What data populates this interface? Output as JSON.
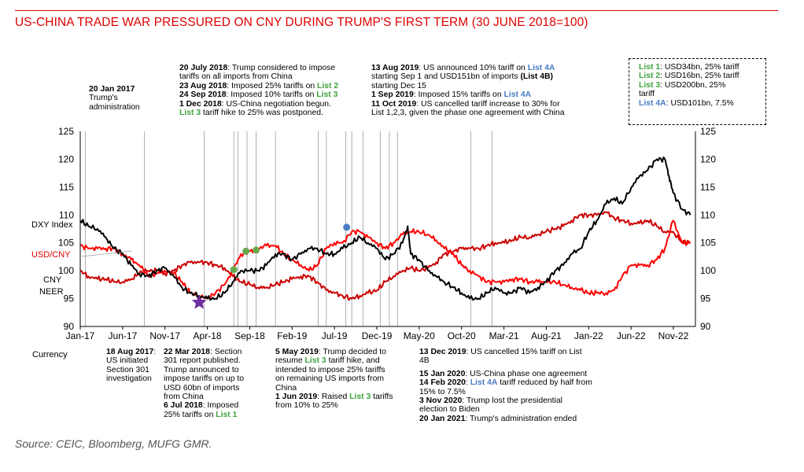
{
  "title": "US-CHINA TRADE WAR PRESSURED ON CNY DURING TRUMP'S FIRST TERM (30 JUNE 2018=100)",
  "source": "Source: CEIC, Bloomberg, MUFG GMR.",
  "colors": {
    "title": "#e00000",
    "dxy": "#000000",
    "usdcny": "#ff0000",
    "cneer": "#cc0000",
    "list_green": "#6aa84f",
    "list_blue": "#4a7cc4",
    "star": "#7030a0"
  },
  "annotations_top": {
    "jan2017": {
      "date": "20 Jan 2017",
      "text": "Trump's administration"
    },
    "jul2018": {
      "l1_date": "20 July 2018",
      "l1_text": "Trump considered to impose",
      "l1_cont": "tariffs on all imports from China",
      "l2_date": "23 Aug 2018",
      "l2_text": "Imposed 25% tariffs on",
      "l2_list": "List 2",
      "l3_date": "24 Sep 2018",
      "l3_text": "Imposed 10% tariffs on",
      "l3_list": "List 3",
      "l4_date": "1 Dec 2018",
      "l4_text": "US-China negotiation begun.",
      "l5_list": "List 3",
      "l5_text": "tariff hike to 25% was postponed."
    },
    "aug2019": {
      "l1_date": "13 Aug 2019",
      "l1_text": "US announced 10% tariff on",
      "l1_list": "List 4A",
      "l2_text": "starting Sep 1 and USD151bn of imports",
      "l2_bold": "(List 4B)",
      "l3_text": "starting Dec 15",
      "l4_date": "1 Sep 2019",
      "l4_text": "Imposed 15% tariffs on",
      "l4_list": "List 4A",
      "l5_date": "11 Oct 2019",
      "l5_text": "US cancelled tariff increase to 30% for",
      "l6_text": "List 1,2,3, given the phase one agreement with China"
    }
  },
  "legend_box": {
    "l1_name": "List 1",
    "l1_text": "USD34bn, 25% tariff",
    "l2_name": "List 2",
    "l2_text": "USD16bn, 25% tariff",
    "l3_name": "List 3",
    "l3_text": "USD200bn, 25%",
    "l3_cont": "tariff",
    "l4_name": "List 4A",
    "l4_text": "USD101bn, 7.5%"
  },
  "annotations_bottom": {
    "currency": "Currency",
    "aug2017": {
      "date": "18 Aug 2017",
      "l1": "US initiated",
      "l2": "Section 301",
      "l3": "investigation"
    },
    "mar2018": {
      "date": "22 Mar 2018",
      "l1": "Section",
      "l2": "301 report published.",
      "l3": "Trump announced to",
      "l4": "impose tariffs on up to",
      "l5": "USD 60bn of imports",
      "l6": "from China",
      "l7_date": "6 Jul 2018",
      "l7": "Imposed",
      "l8": "25% tariffs on",
      "l8_list": "List 1"
    },
    "may2019": {
      "date": "5 May 2019",
      "l1": "Trump decided to",
      "l2a": "resume",
      "l2_list": "List 3",
      "l2b": "tariff hike, and",
      "l3": "intended to impose 25% tariffs",
      "l4": "on remaining US imports from",
      "l5": "China",
      "l6_date": "1 Jun 2019",
      "l6": "Raised",
      "l6_list": "List 3",
      "l6b": "tariffs",
      "l7": "from 10% to 25%"
    },
    "dec2019": {
      "d1": "13 Dec 2019",
      "t1": "US cancelled 15% tariff on List",
      "t1b": "4B",
      "d2": "15 Jan 2020",
      "t2": "US-China phase one agreement",
      "d3": "14 Feb 2020",
      "t3_list": "List 4A",
      "t3": "tariff reduced by half from",
      "t3b": "15% to 7.5%",
      "d4": "3 Nov 2020",
      "t4": "Trump lost the presidential",
      "t4b": "election to Biden",
      "d5": "20 Jan 2021",
      "t5": "Trump's administration ended"
    }
  },
  "series_labels": {
    "dxy": "DXY Index",
    "usdcny": "USD/CNY",
    "cneer_1": "CNY",
    "cneer_2": "NEER"
  },
  "chart_data": {
    "type": "line",
    "x_ticks": [
      "Jan-17",
      "Jun-17",
      "Nov-17",
      "Apr-18",
      "Sep-18",
      "Feb-19",
      "Jul-19",
      "Dec-19",
      "May-20",
      "Oct-20",
      "Mar-21",
      "Aug-21",
      "Jan-22",
      "Jun-22",
      "Nov-22"
    ],
    "x_tick_positions": [
      2017.0,
      2017.417,
      2017.833,
      2018.25,
      2018.667,
      2019.083,
      2019.5,
      2019.917,
      2020.333,
      2020.75,
      2021.167,
      2021.583,
      2022.0,
      2022.417,
      2022.833
    ],
    "xlim": [
      2017.0,
      2023.05
    ],
    "ylim": [
      90,
      125
    ],
    "y_ticks": [
      90,
      95,
      100,
      105,
      110,
      115,
      120,
      125
    ],
    "grid": false,
    "series": [
      {
        "name": "DXY Index",
        "x": [
          2017.0,
          2017.08,
          2017.17,
          2017.25,
          2017.33,
          2017.42,
          2017.5,
          2017.58,
          2017.67,
          2017.75,
          2017.83,
          2017.92,
          2018.0,
          2018.08,
          2018.17,
          2018.25,
          2018.33,
          2018.42,
          2018.5,
          2018.58,
          2018.67,
          2018.75,
          2018.83,
          2018.92,
          2019.0,
          2019.08,
          2019.17,
          2019.25,
          2019.33,
          2019.42,
          2019.5,
          2019.58,
          2019.67,
          2019.75,
          2019.83,
          2019.92,
          2020.0,
          2020.08,
          2020.17,
          2020.22,
          2020.25,
          2020.33,
          2020.42,
          2020.5,
          2020.58,
          2020.67,
          2020.75,
          2020.83,
          2020.92,
          2021.0,
          2021.08,
          2021.17,
          2021.25,
          2021.33,
          2021.42,
          2021.5,
          2021.58,
          2021.67,
          2021.75,
          2021.83,
          2021.92,
          2022.0,
          2022.08,
          2022.17,
          2022.25,
          2022.33,
          2022.42,
          2022.5,
          2022.58,
          2022.67,
          2022.75,
          2022.79,
          2022.83,
          2022.92,
          2023.0
        ],
        "values": [
          109,
          108,
          107.5,
          106,
          104,
          103,
          101,
          99.5,
          99,
          100,
          100.5,
          99,
          97,
          96,
          95.5,
          95,
          95,
          96,
          98,
          100,
          100,
          100,
          101,
          103,
          103,
          102,
          103,
          104,
          104,
          103,
          103,
          104,
          105,
          106,
          105,
          104,
          102,
          103,
          105,
          108,
          103,
          102,
          100,
          99,
          98,
          97,
          96,
          95,
          95,
          96,
          97,
          96,
          96,
          97,
          96,
          97,
          98,
          100,
          101,
          103,
          104,
          107,
          109,
          112,
          113,
          112,
          115,
          117,
          118,
          120,
          120,
          117,
          114,
          111,
          110
        ]
      },
      {
        "name": "USD/CNY",
        "x": [
          2017.0,
          2017.08,
          2017.17,
          2017.25,
          2017.33,
          2017.42,
          2017.5,
          2017.58,
          2017.67,
          2017.75,
          2017.83,
          2017.92,
          2018.0,
          2018.08,
          2018.17,
          2018.25,
          2018.33,
          2018.42,
          2018.5,
          2018.58,
          2018.67,
          2018.75,
          2018.83,
          2018.92,
          2019.0,
          2019.08,
          2019.17,
          2019.25,
          2019.33,
          2019.42,
          2019.5,
          2019.58,
          2019.67,
          2019.75,
          2019.83,
          2019.92,
          2020.0,
          2020.08,
          2020.17,
          2020.25,
          2020.33,
          2020.42,
          2020.5,
          2020.58,
          2020.67,
          2020.75,
          2020.83,
          2020.92,
          2021.0,
          2021.08,
          2021.17,
          2021.25,
          2021.33,
          2021.42,
          2021.5,
          2021.58,
          2021.67,
          2021.75,
          2021.83,
          2021.92,
          2022.0,
          2022.08,
          2022.17,
          2022.25,
          2022.33,
          2022.42,
          2022.5,
          2022.58,
          2022.67,
          2022.75,
          2022.83,
          2022.92,
          2023.0
        ],
        "values": [
          104.5,
          104,
          104,
          104,
          104,
          103,
          102,
          101,
          99,
          99.5,
          100,
          99.5,
          98,
          96,
          95.5,
          95,
          96,
          97.5,
          100,
          103,
          103.5,
          104,
          104.5,
          104.5,
          103,
          102,
          101,
          100,
          101,
          104,
          105,
          105,
          107,
          107,
          106,
          105,
          104,
          105,
          106.5,
          107,
          107,
          106.5,
          105.5,
          104,
          103,
          101,
          100,
          99,
          98,
          98,
          98,
          98.5,
          98.5,
          98,
          98,
          98,
          98,
          97.5,
          97,
          96.5,
          96,
          96,
          96,
          96.5,
          99,
          101,
          101,
          101,
          102,
          104,
          109,
          105,
          105
        ]
      },
      {
        "name": "CNY NEER",
        "x": [
          2017.0,
          2017.08,
          2017.17,
          2017.25,
          2017.33,
          2017.42,
          2017.5,
          2017.58,
          2017.67,
          2017.75,
          2017.83,
          2017.92,
          2018.0,
          2018.08,
          2018.17,
          2018.25,
          2018.33,
          2018.42,
          2018.5,
          2018.58,
          2018.67,
          2018.75,
          2018.83,
          2018.92,
          2019.0,
          2019.08,
          2019.17,
          2019.25,
          2019.33,
          2019.42,
          2019.5,
          2019.58,
          2019.67,
          2019.75,
          2019.83,
          2019.92,
          2020.0,
          2020.08,
          2020.17,
          2020.25,
          2020.33,
          2020.42,
          2020.5,
          2020.58,
          2020.67,
          2020.75,
          2020.83,
          2020.92,
          2021.0,
          2021.08,
          2021.17,
          2021.25,
          2021.33,
          2021.42,
          2021.5,
          2021.58,
          2021.67,
          2021.75,
          2021.83,
          2021.92,
          2022.0,
          2022.08,
          2022.17,
          2022.25,
          2022.33,
          2022.42,
          2022.5,
          2022.58,
          2022.67,
          2022.75,
          2022.83,
          2022.92,
          2023.0
        ],
        "values": [
          100,
          99,
          98.5,
          98.5,
          98,
          98,
          98.5,
          99.5,
          100,
          100,
          99.5,
          100,
          101,
          101.5,
          101.5,
          101.5,
          101,
          100.5,
          99,
          98,
          97.5,
          97,
          97,
          97.5,
          98,
          98.5,
          99,
          99,
          98,
          96.5,
          96,
          95.5,
          95,
          95.5,
          96,
          96.5,
          98,
          99,
          100,
          100.5,
          100,
          100.5,
          101.5,
          103,
          103.5,
          104,
          104,
          104,
          104.5,
          105,
          105,
          105.5,
          106,
          106,
          106.5,
          107,
          107.5,
          108,
          109,
          110,
          110,
          110,
          110.5,
          109.5,
          109,
          108.5,
          108.5,
          109,
          108,
          107,
          107,
          105,
          105
        ]
      }
    ],
    "markers": [
      {
        "type": "star",
        "x": 2018.17,
        "y": 94.3
      },
      {
        "type": "dot",
        "x": 2018.51,
        "y": 100.2,
        "label": "List 1"
      },
      {
        "type": "dot",
        "x": 2018.63,
        "y": 103.5,
        "label": "List 2"
      },
      {
        "type": "dot",
        "x": 2018.73,
        "y": 103.7,
        "label": "List 3"
      },
      {
        "type": "dot",
        "x": 2019.62,
        "y": 107.8,
        "label": "List 4A"
      }
    ],
    "event_lines_x": [
      2017.05,
      2017.63,
      2018.22,
      2018.51,
      2018.55,
      2018.64,
      2018.73,
      2018.92,
      2019.34,
      2019.42,
      2019.61,
      2019.67,
      2019.78,
      2019.95,
      2020.04,
      2020.12,
      2020.84,
      2021.05
    ]
  }
}
